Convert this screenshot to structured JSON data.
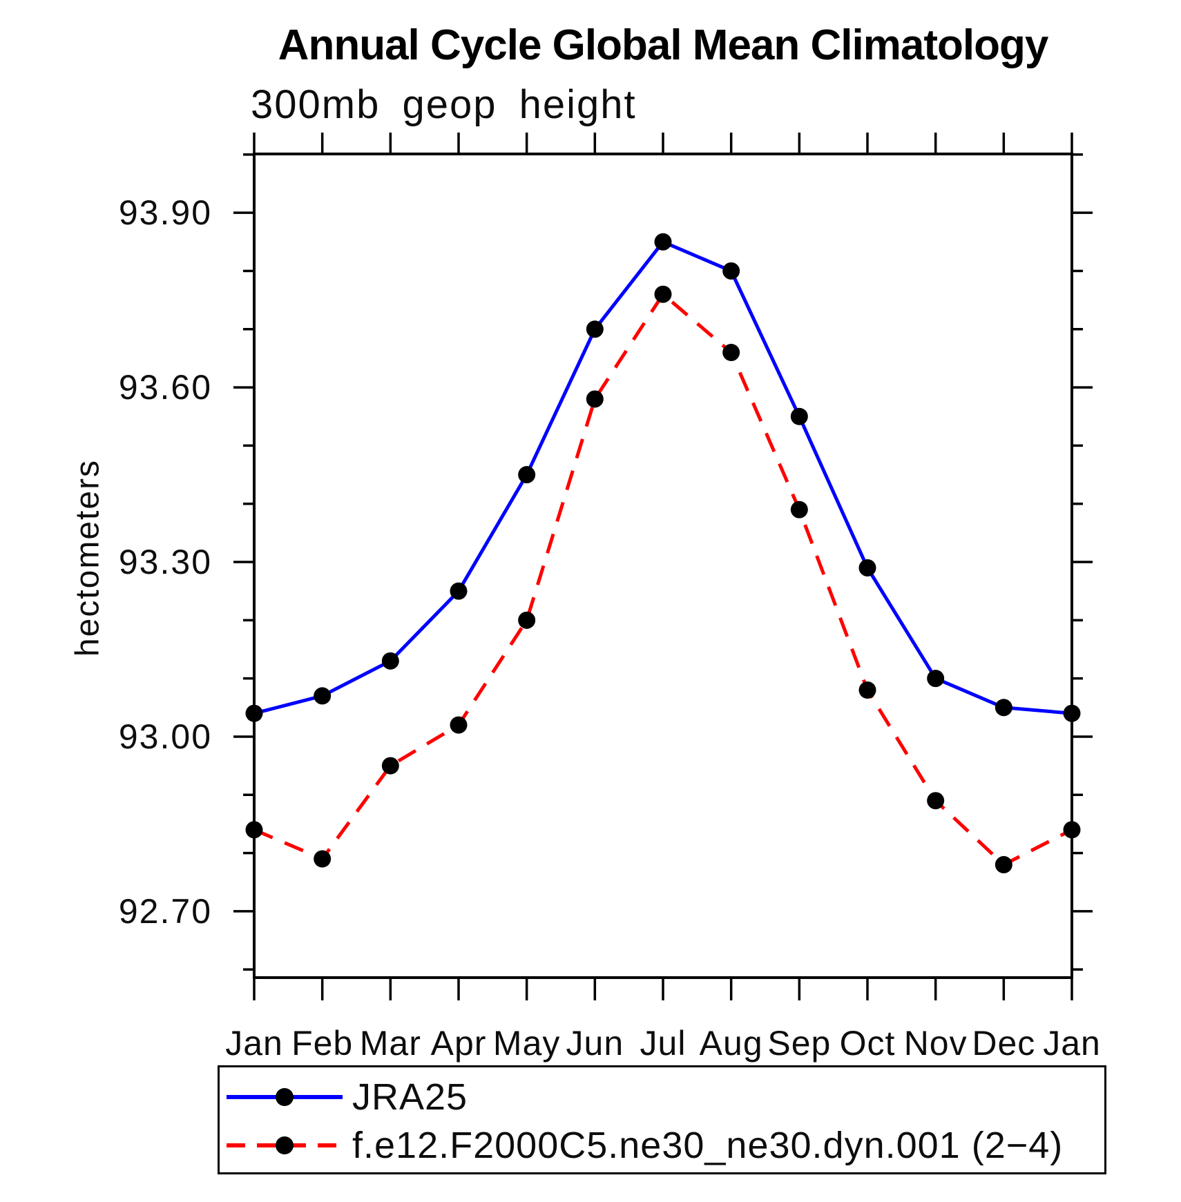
{
  "title": "Annual Cycle Global Mean Climatology",
  "subtitle": "300mb geop height",
  "chart_data": {
    "type": "line",
    "categories": [
      "Jan",
      "Feb",
      "Mar",
      "Apr",
      "May",
      "Jun",
      "Jul",
      "Aug",
      "Sep",
      "Oct",
      "Nov",
      "Dec",
      "Jan"
    ],
    "series": [
      {
        "name": "JRA25",
        "color": "#0000ff",
        "line_style": "solid",
        "marker": "filled-black-circle",
        "values": [
          93.04,
          93.07,
          93.13,
          93.25,
          93.45,
          93.7,
          93.85,
          93.8,
          93.55,
          93.29,
          93.1,
          93.05,
          93.04
        ]
      },
      {
        "name": "f.e12.F2000C5.ne30_ne30.dyn.001 (2−4)",
        "color": "#ff0000",
        "line_style": "dashed",
        "marker": "filled-black-circle",
        "values": [
          92.84,
          92.79,
          92.95,
          93.02,
          93.2,
          93.58,
          93.76,
          93.66,
          93.39,
          93.08,
          92.89,
          92.78,
          92.84
        ]
      }
    ],
    "xlabel": "",
    "ylabel": "hectometers",
    "ylim": [
      92.586,
      94.001
    ],
    "yticks_major": {
      "values": [
        93.9,
        93.6,
        93.3,
        93.0,
        92.7
      ],
      "labels": [
        "93.90",
        "93.60",
        "93.30",
        "93.00",
        "92.70"
      ]
    },
    "yticks_minor": [
      94.0,
      93.8,
      93.7,
      93.5,
      93.4,
      93.2,
      93.1,
      92.9,
      92.8,
      92.6
    ],
    "grid": false,
    "legend_position": "bottom-left-box",
    "frame_color": "#000000",
    "marker_color": "#000000"
  },
  "legend": {
    "entries": [
      {
        "label": "JRA25"
      },
      {
        "label": "f.e12.F2000C5.ne30_ne30.dyn.001 (2−4)"
      }
    ]
  }
}
